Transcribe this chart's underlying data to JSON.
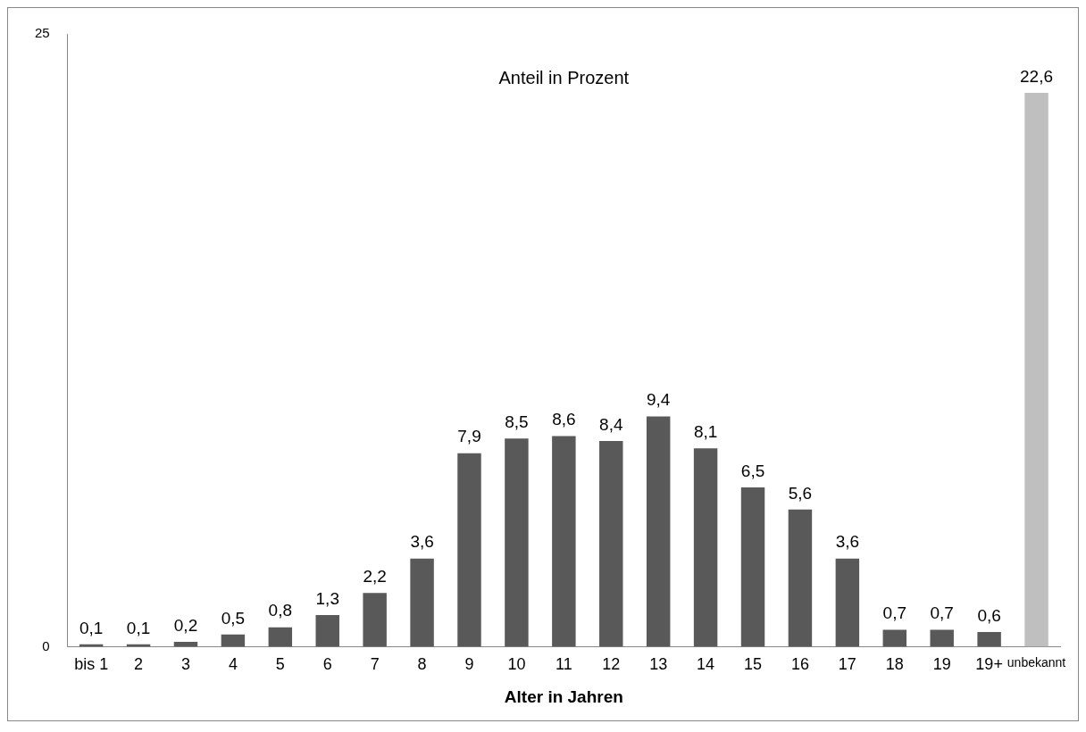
{
  "chart_data": {
    "type": "bar",
    "title": "Anteil in Prozent",
    "xlabel": "Alter in Jahren",
    "categories": [
      "bis 1",
      "2",
      "3",
      "4",
      "5",
      "6",
      "7",
      "8",
      "9",
      "10",
      "11",
      "12",
      "13",
      "14",
      "15",
      "16",
      "17",
      "18",
      "19",
      "19+",
      "unbekannt"
    ],
    "values": [
      0.1,
      0.1,
      0.2,
      0.5,
      0.8,
      1.3,
      2.2,
      3.6,
      7.9,
      8.5,
      8.6,
      8.4,
      9.4,
      8.1,
      6.5,
      5.6,
      3.6,
      0.7,
      0.7,
      0.6,
      22.6
    ],
    "colors": [
      "#595959",
      "#595959",
      "#595959",
      "#595959",
      "#595959",
      "#595959",
      "#595959",
      "#595959",
      "#595959",
      "#595959",
      "#595959",
      "#595959",
      "#595959",
      "#595959",
      "#595959",
      "#595959",
      "#595959",
      "#595959",
      "#595959",
      "#595959",
      "#bfbfbf"
    ],
    "value_labels": [
      "0,1",
      "0,1",
      "0,2",
      "0,5",
      "0,8",
      "1,3",
      "2,2",
      "3,6",
      "7,9",
      "8,5",
      "8,6",
      "8,4",
      "9,4",
      "8,1",
      "6,5",
      "5,6",
      "3,6",
      "0,7",
      "0,7",
      "0,6",
      "22,6"
    ],
    "ylim": [
      0,
      25
    ],
    "yticks": [
      0,
      25
    ],
    "grid": false,
    "legend": false
  }
}
